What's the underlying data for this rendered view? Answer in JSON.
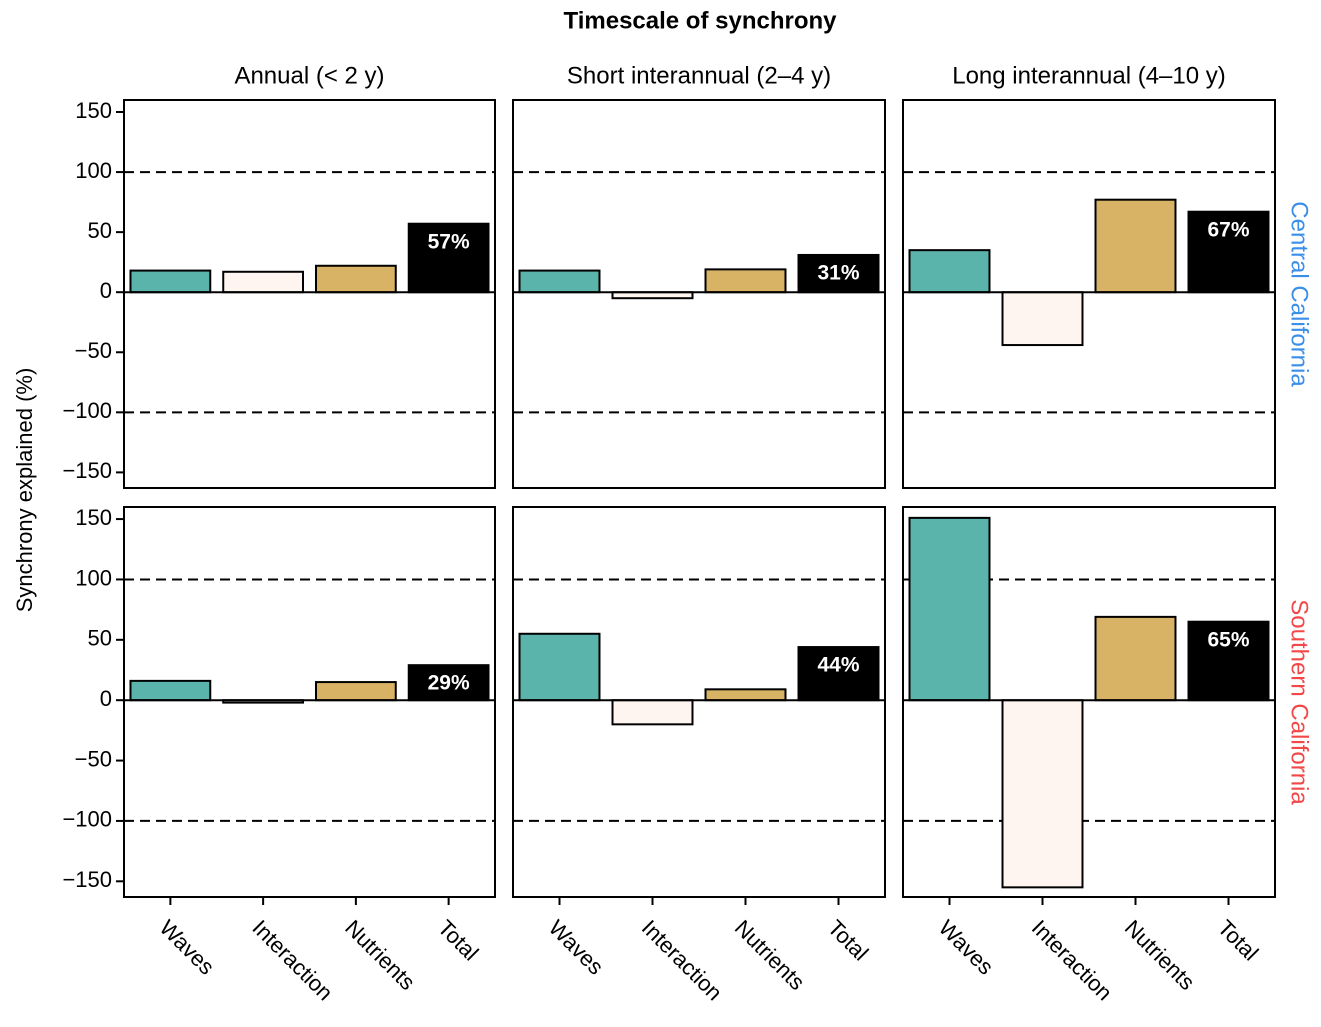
{
  "chart_data": {
    "type": "bar",
    "title": "Timescale of synchrony",
    "y_label": "Synchrony explained (%)",
    "columns": [
      "Annual (< 2 y)",
      "Short interannual (2–4 y)",
      "Long interannual (4–10 y)"
    ],
    "rows": [
      {
        "name": "Central California",
        "color": "#3b8fe8"
      },
      {
        "name": "Southern California",
        "color": "#f24848"
      }
    ],
    "categories": [
      "Waves",
      "Interaction",
      "Nutrients",
      "Total"
    ],
    "colors": [
      "#5ab4ac",
      "#fff5f0",
      "#d8b365",
      "#000000"
    ],
    "ylim": [
      -163,
      160
    ],
    "yticks": [
      {
        "value": -150,
        "label": "−150"
      },
      {
        "value": -100,
        "label": "−100"
      },
      {
        "value": -50,
        "label": "−50"
      },
      0,
      50,
      100,
      150
    ],
    "reference_lines": [
      -100,
      100
    ],
    "panels": [
      [
        {
          "values": [
            18,
            17,
            22,
            57
          ],
          "value_labels": [
            null,
            null,
            null,
            "57%"
          ]
        },
        {
          "values": [
            18,
            -5,
            19,
            31
          ],
          "value_labels": [
            null,
            null,
            null,
            "31%"
          ]
        },
        {
          "values": [
            35,
            -44,
            77,
            67
          ],
          "value_labels": [
            null,
            null,
            null,
            "67%"
          ]
        }
      ],
      [
        {
          "values": [
            16,
            -2,
            15,
            29
          ],
          "value_labels": [
            null,
            null,
            null,
            "29%"
          ]
        },
        {
          "values": [
            55,
            -20,
            9,
            44
          ],
          "value_labels": [
            null,
            null,
            null,
            "44%"
          ]
        },
        {
          "values": [
            151,
            -155,
            69,
            65
          ],
          "value_labels": [
            null,
            null,
            null,
            "65%"
          ]
        }
      ]
    ]
  }
}
